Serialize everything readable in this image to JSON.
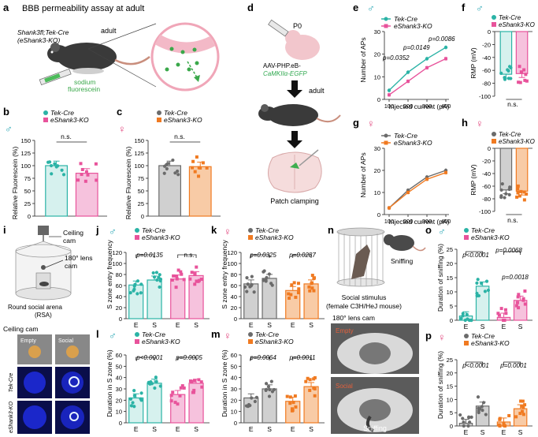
{
  "colors": {
    "tek": "#2bb3a6",
    "tek_fill": "#d6f1ee",
    "eshank_m": "#e8539b",
    "eshank_m_fill": "#f6c2dd",
    "tek_f": "#6b6b6b",
    "tek_f_fill": "#d0d0d0",
    "eshank_f": "#f07a21",
    "eshank_f_fill": "#f8cba6",
    "male_sym": "#2aa7b5",
    "female_sym": "#e0427b"
  },
  "legend": {
    "tek": "Tek-Cre",
    "eshank": "eShank3-KO"
  },
  "panels": {
    "a": {
      "letter": "a",
      "title": "BBB permeability assay at adult",
      "genotype_line1": "Shank3fl;Tek-Cre",
      "genotype_line2": "(eShank3-KO)",
      "adult": "adult",
      "sodium": "sodium",
      "fluorescein": "fluorescein"
    },
    "b": {
      "letter": "b",
      "ylabel": "Relative Fluorescein (%)",
      "ns": "n.s."
    },
    "c": {
      "letter": "c",
      "ylabel": "Relative Fluorescein (%)",
      "ns": "n.s."
    },
    "d": {
      "letter": "d",
      "p0": "P0",
      "virus1": "AAV-PHP.eB-",
      "virus2": "CaMKIIα-EGFP",
      "adult": "adult",
      "patch": "Patch clamping"
    },
    "e": {
      "letter": "e",
      "ylabel": "Number of APs",
      "xlabel": "Injected current (pA)",
      "p1": "p=0.0352",
      "p2": "p=0.0149",
      "p3": "p=0.0086"
    },
    "f": {
      "letter": "f",
      "ylabel": "RMP (mV)",
      "ns": "n.s."
    },
    "g": {
      "letter": "g",
      "ylabel": "Number of APs",
      "xlabel": "Injected current (pA)"
    },
    "h": {
      "letter": "h",
      "ylabel": "RMP (mV)",
      "ns": "n.s."
    },
    "i": {
      "letter": "i",
      "ceiling_cam": "Ceiling",
      "ceiling_cam2": "cam",
      "lens_cam": "180° lens",
      "lens_cam2": "cam",
      "arena": "Round social arena",
      "arena2": "(RSA)",
      "ceiling_label": "Ceiling cam",
      "empty": "Empty",
      "social": "Social",
      "row1": "Tek-Cre",
      "row2": "eShank3-KO"
    },
    "j": {
      "letter": "j",
      "ylabel": "S zone entry frequency",
      "p1": "p=0.0135",
      "ns": "n.s."
    },
    "k": {
      "letter": "k",
      "ylabel": "S zone entry frequency",
      "p1": "p=0.0325",
      "p2": "p=0.0287"
    },
    "l": {
      "letter": "l",
      "ylabel": "Duration in S zone (%)",
      "p1": "p<0.0001",
      "p2": "p=0.0005"
    },
    "m": {
      "letter": "m",
      "ylabel": "Duration in S zone (%)",
      "p1": "p=0.0064",
      "p2": "p=0.0011"
    },
    "n": {
      "letter": "n",
      "sniffing": "Sniffing",
      "stimulus1": "Social stimulus",
      "stimulus2": "(female C3H/HeJ mouse)",
      "lens": "180° lens cam",
      "empty": "Empty",
      "social": "Social",
      "sniff_label": "Sniffing"
    },
    "o": {
      "letter": "o",
      "ylabel": "Duration of sniffing (%)",
      "p1": "p<0.0001",
      "p2": "p=0.0068",
      "p3": "p=0.0018"
    },
    "p": {
      "letter": "p",
      "ylabel": "Duration of sniffing (%)",
      "p1": "p<0.0001",
      "p2": "p=0.0001"
    }
  },
  "chart_data": [
    {
      "panel": "b",
      "type": "bar",
      "categories": [
        "Tek-Cre",
        "eShank3-KO"
      ],
      "values": [
        100,
        85
      ],
      "ylim": [
        0,
        150
      ],
      "yticks": [
        0,
        25,
        50,
        75,
        100,
        125,
        150
      ]
    },
    {
      "panel": "c",
      "type": "bar",
      "categories": [
        "Tek-Cre",
        "eShank3-KO"
      ],
      "values": [
        100,
        98
      ],
      "ylim": [
        0,
        150
      ],
      "yticks": [
        0,
        25,
        50,
        75,
        100,
        125,
        150
      ]
    },
    {
      "panel": "e",
      "type": "line",
      "x": [
        100,
        200,
        300,
        400
      ],
      "xlim": [
        100,
        400
      ],
      "ylim": [
        0,
        30
      ],
      "yticks": [
        0,
        10,
        20,
        30
      ],
      "series": [
        {
          "name": "Tek-Cre",
          "values": [
            4,
            12,
            18,
            23
          ]
        },
        {
          "name": "eShank3-KO",
          "values": [
            2,
            8,
            14,
            18
          ]
        }
      ]
    },
    {
      "panel": "f",
      "type": "bar",
      "categories": [
        "Tek-Cre",
        "eShank3-KO"
      ],
      "values": [
        -66,
        -65
      ],
      "ylim": [
        -100,
        0
      ],
      "yticks": [
        0,
        -20,
        -40,
        -60,
        -80,
        -100
      ]
    },
    {
      "panel": "g",
      "type": "line",
      "x": [
        100,
        200,
        300,
        400
      ],
      "xlim": [
        100,
        400
      ],
      "ylim": [
        0,
        30
      ],
      "yticks": [
        0,
        10,
        20,
        30
      ],
      "series": [
        {
          "name": "Tek-Cre",
          "values": [
            3,
            11,
            17,
            20
          ]
        },
        {
          "name": "eShank3-KO",
          "values": [
            3,
            10,
            16,
            19
          ]
        }
      ]
    },
    {
      "panel": "h",
      "type": "bar",
      "categories": [
        "Tek-Cre",
        "eShank3-KO"
      ],
      "values": [
        -66,
        -68
      ],
      "ylim": [
        -100,
        0
      ],
      "yticks": [
        0,
        -20,
        -40,
        -60,
        -80,
        -100
      ]
    },
    {
      "panel": "j",
      "type": "bar",
      "categories": [
        "E",
        "S",
        "E",
        "S"
      ],
      "groups": [
        "Tek-Cre",
        "Tek-Cre",
        "eShank3-KO",
        "eShank3-KO"
      ],
      "values": [
        61,
        70,
        72,
        78
      ],
      "ylim": [
        0,
        120
      ],
      "yticks": [
        0,
        20,
        40,
        60,
        80,
        100,
        120
      ]
    },
    {
      "panel": "k",
      "type": "bar",
      "categories": [
        "E",
        "S",
        "E",
        "S"
      ],
      "groups": [
        "Tek-Cre",
        "Tek-Cre",
        "eShank3-KO",
        "eShank3-KO"
      ],
      "values": [
        63,
        73,
        51,
        63
      ],
      "ylim": [
        0,
        120
      ],
      "yticks": [
        0,
        20,
        40,
        60,
        80,
        100,
        120
      ]
    },
    {
      "panel": "l",
      "type": "bar",
      "categories": [
        "E",
        "S",
        "E",
        "S"
      ],
      "groups": [
        "Tek-Cre",
        "Tek-Cre",
        "eShank3-KO",
        "eShank3-KO"
      ],
      "values": [
        22,
        35,
        25,
        35
      ],
      "ylim": [
        0,
        60
      ],
      "yticks": [
        0,
        10,
        20,
        30,
        40,
        50,
        60
      ]
    },
    {
      "panel": "m",
      "type": "bar",
      "categories": [
        "E",
        "S",
        "E",
        "S"
      ],
      "groups": [
        "Tek-Cre",
        "Tek-Cre",
        "eShank3-KO",
        "eShank3-KO"
      ],
      "values": [
        22,
        30,
        19,
        32
      ],
      "ylim": [
        0,
        60
      ],
      "yticks": [
        0,
        10,
        20,
        30,
        40,
        50,
        60
      ]
    },
    {
      "panel": "o",
      "type": "bar",
      "categories": [
        "E",
        "S",
        "E",
        "S"
      ],
      "groups": [
        "Tek-Cre",
        "Tek-Cre",
        "eShank3-KO",
        "eShank3-KO"
      ],
      "values": [
        1.5,
        12,
        1,
        7
      ],
      "ylim": [
        0,
        25
      ],
      "yticks": [
        0,
        5,
        10,
        15,
        20,
        25
      ]
    },
    {
      "panel": "p",
      "type": "bar",
      "categories": [
        "E",
        "S",
        "E",
        "S"
      ],
      "groups": [
        "Tek-Cre",
        "Tek-Cre",
        "eShank3-KO",
        "eShank3-KO"
      ],
      "values": [
        1,
        7.5,
        1.5,
        6.5
      ],
      "ylim": [
        0,
        25
      ],
      "yticks": [
        0,
        5,
        10,
        15,
        20,
        25
      ]
    }
  ]
}
